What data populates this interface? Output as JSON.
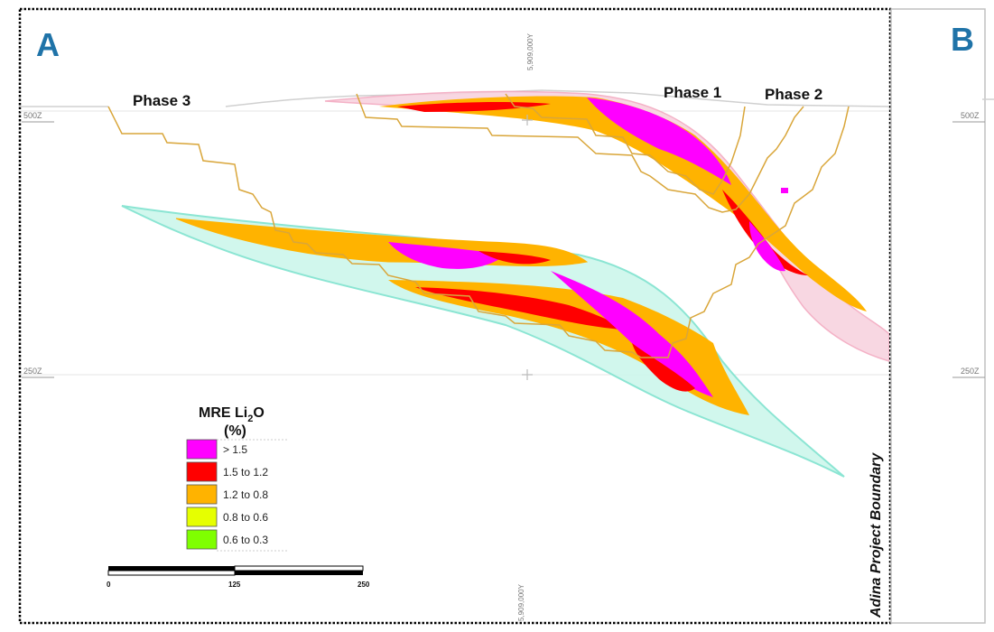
{
  "panels": {
    "left": "A",
    "right": "B"
  },
  "phases": [
    "Phase 3",
    "Phase 1",
    "Phase 2"
  ],
  "elevations": {
    "upper": "500Z",
    "lower": "250Z"
  },
  "northing": "5,909,000Y",
  "legend": {
    "title_main": "MRE Li",
    "title_sub": "2",
    "title_end": "O",
    "title_unit": "(%)",
    "items": [
      {
        "label": "> 1.5",
        "color": "#ff00ff"
      },
      {
        "label": "1.5 to 1.2",
        "color": "#ff0000"
      },
      {
        "label": "1.2 to 0.8",
        "color": "#ffb300"
      },
      {
        "label": "0.8 to 0.6",
        "color": "#e6ff00"
      },
      {
        "label": "0.6 to 0.3",
        "color": "#7fff00"
      }
    ]
  },
  "scale_bar": {
    "ticks": [
      "0",
      "125",
      "250"
    ]
  },
  "boundary_label": "Adina Project Boundary",
  "colors": {
    "panel_letter": "#1f73a8",
    "pit_shell": "#d9a63a",
    "lower_envelope": "#cdf7ec",
    "upper_envelope": "#f8d3df"
  }
}
